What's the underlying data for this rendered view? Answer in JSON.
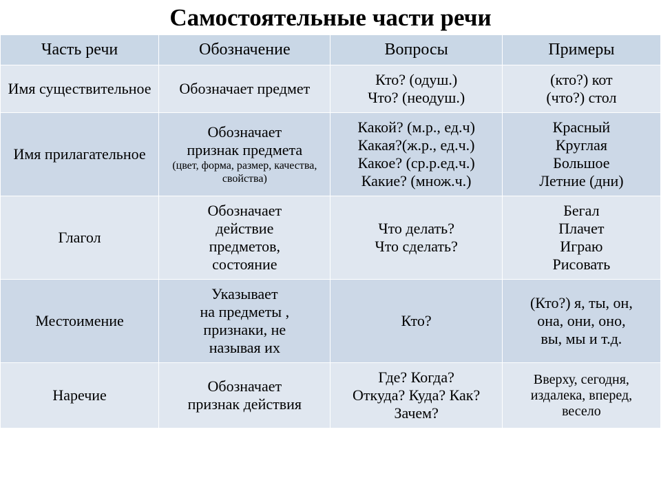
{
  "title": "Самостоятельные части речи",
  "headers": {
    "c1": "Часть речи",
    "c2": "Обозначение",
    "c3": "Вопросы",
    "c4": "Примеры"
  },
  "rows": {
    "r1": {
      "part": "Имя существительное",
      "meaning": "Обозначает предмет",
      "questions": "Кто? (одуш.)\nЧто? (неодуш.)",
      "examples": "(кто?) кот\n(что?) стол"
    },
    "r2": {
      "part": "Имя прилагательное",
      "meaning_main": "Обозначает\nпризнак предмета",
      "meaning_sub": "(цвет, форма, размер, качества, свойства)",
      "questions": "Какой? (м.р., ед.ч)\nКакая?(ж.р., ед.ч.)\nКакое? (ср.р.ед.ч.)\nКакие? (множ.ч.)",
      "examples": "Красный\nКруглая\nБольшое\nЛетние (дни)"
    },
    "r3": {
      "part": "Глагол",
      "meaning": "Обозначает\nдействие\nпредметов,\nсостояние",
      "questions": "Что делать?\nЧто сделать?",
      "examples": "Бегал\nПлачет\nИграю\nРисовать"
    },
    "r4": {
      "part": "Местоимение",
      "meaning": "Указывает\nна предметы ,\nпризнаки, не\nназывая их",
      "questions": "Кто?",
      "examples": "(Кто?) я, ты, он,\nона, они, оно,\nвы, мы и т.д."
    },
    "r5": {
      "part": "Наречие",
      "meaning": "Обозначает\nпризнак действия",
      "questions": "Где? Когда?\nОткуда? Куда? Как?\nЗачем?",
      "examples": "Вверху, сегодня,\nиздалека,  вперед,\nвесело",
      "examples_fontsize": "20px"
    }
  },
  "styling": {
    "title_fontsize": 35,
    "header_bg": "#c9d7e6",
    "row_odd_bg": "#e0e7f0",
    "row_even_bg": "#ccd8e7",
    "border_color": "#ffffff",
    "font_family": "Times New Roman",
    "cell_fontsize": 22,
    "header_fontsize": 24,
    "sub_fontsize": 16
  }
}
